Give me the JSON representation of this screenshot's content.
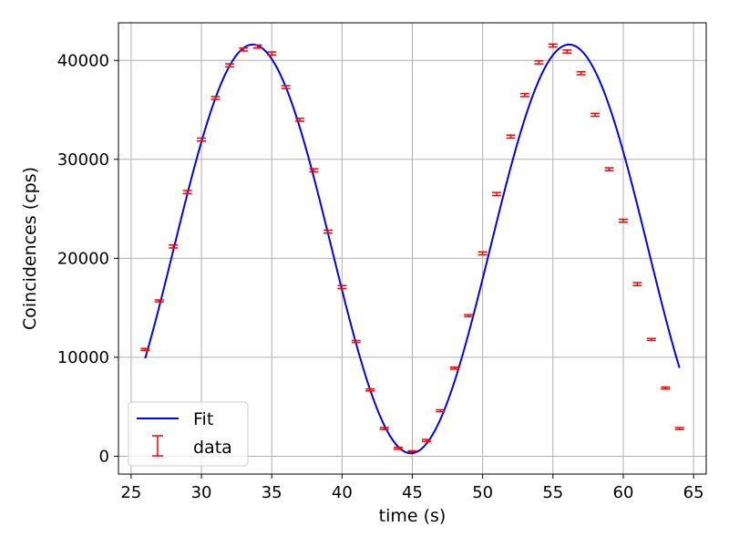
{
  "chart_data": {
    "type": "line",
    "title": "",
    "xlabel": "time (s)",
    "ylabel": "Coincidences (cps)",
    "xlim": [
      24.1,
      65.9
    ],
    "ylim": [
      -1800,
      43800
    ],
    "xticks": [
      25,
      30,
      35,
      40,
      45,
      50,
      55,
      60,
      65
    ],
    "yticks": [
      0,
      10000,
      20000,
      30000,
      40000
    ],
    "grid": true,
    "legend_position": "lower-left",
    "series": [
      {
        "name": "Fit",
        "kind": "line",
        "color": "#0000ff",
        "model": "sine",
        "x_range": [
          26,
          64
        ],
        "peak_x": 33.65,
        "trough_x": 44.9,
        "max": 41600,
        "min": 300
      },
      {
        "name": "data",
        "kind": "errorbar",
        "color": "#ff0000",
        "x": [
          26,
          27,
          28,
          29,
          30,
          31,
          32,
          33,
          34,
          35,
          36,
          37,
          38,
          39,
          40,
          41,
          42,
          43,
          44,
          45,
          46,
          47,
          48,
          49,
          50,
          51,
          52,
          53,
          54,
          55,
          56,
          57,
          58,
          59,
          60,
          61,
          62,
          63,
          64
        ],
        "y": [
          10800,
          15700,
          21200,
          26700,
          32000,
          36200,
          39500,
          41100,
          41400,
          40700,
          37300,
          34000,
          28900,
          22700,
          17100,
          11600,
          6700,
          2800,
          800,
          500,
          1600,
          4600,
          8900,
          14200,
          20500,
          26500,
          32300,
          36500,
          39800,
          41500,
          40900,
          38700,
          34500,
          29000,
          23800,
          17400,
          11800,
          6900,
          2800
        ],
        "yerr": [
          100,
          100,
          150,
          150,
          150,
          150,
          150,
          150,
          150,
          150,
          150,
          150,
          150,
          150,
          150,
          100,
          100,
          100,
          100,
          50,
          100,
          100,
          100,
          100,
          150,
          150,
          150,
          150,
          150,
          150,
          150,
          150,
          150,
          150,
          150,
          150,
          100,
          100,
          100
        ]
      }
    ]
  }
}
